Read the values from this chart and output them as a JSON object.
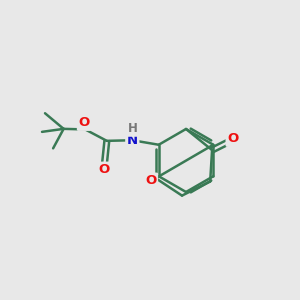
{
  "background_color": "#e8e8e8",
  "bond_color": "#3a7a55",
  "bond_width": 1.8,
  "o_color": "#ee1111",
  "n_color": "#1111cc",
  "h_color": "#777777",
  "figsize": [
    3.0,
    3.0
  ],
  "dpi": 100,
  "xlim": [
    0,
    10
  ],
  "ylim": [
    0,
    10
  ]
}
